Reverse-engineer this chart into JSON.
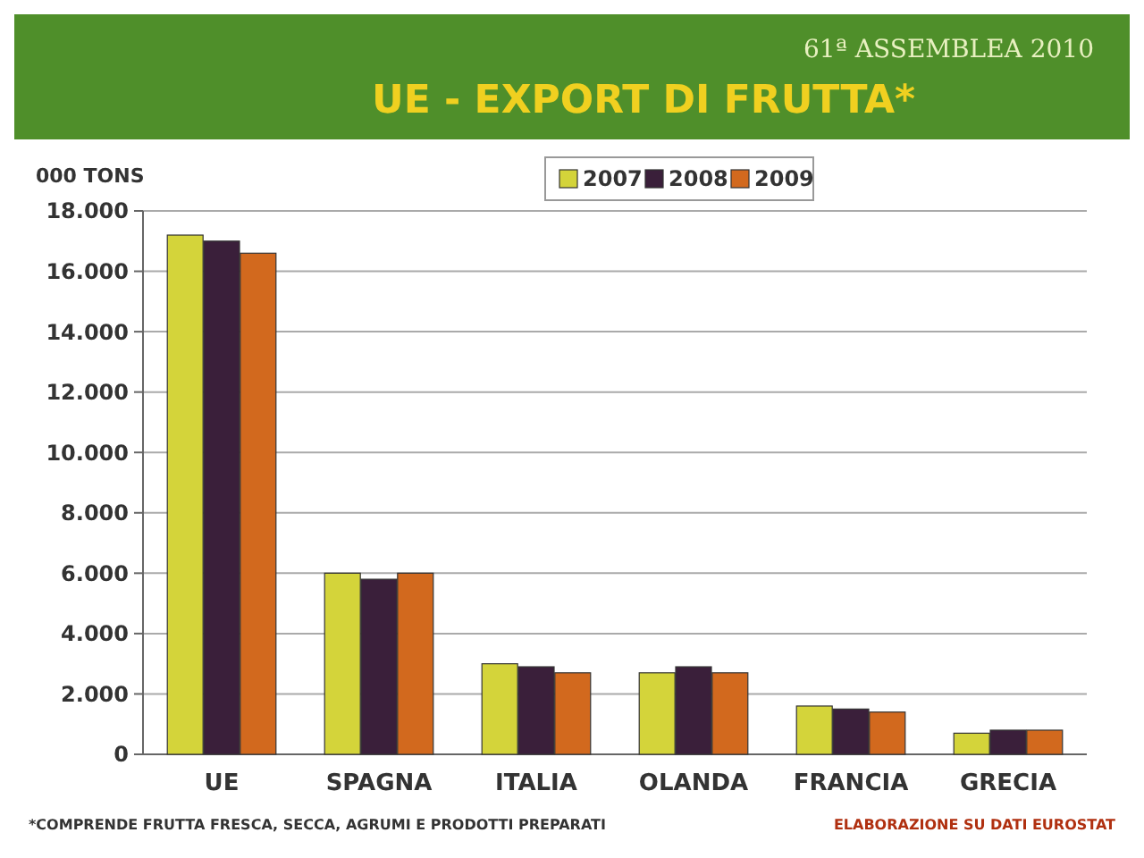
{
  "chart_data": {
    "type": "bar",
    "title": "UE - EXPORT DI FRUTTA*",
    "subtitle": "61ª ASSEMBLEA 2010",
    "ylabel": "000 TONS",
    "categories": [
      "UE",
      "SPAGNA",
      "ITALIA",
      "OLANDA",
      "FRANCIA",
      "GRECIA"
    ],
    "series": [
      {
        "name": "2007",
        "color": "#d4d43a",
        "values": [
          17200,
          6000,
          3000,
          2700,
          1600,
          700
        ]
      },
      {
        "name": "2008",
        "color": "#3a1f3a",
        "values": [
          17000,
          5800,
          2900,
          2900,
          1500,
          800
        ]
      },
      {
        "name": "2009",
        "color": "#d2691e",
        "values": [
          16600,
          6000,
          2700,
          2700,
          1400,
          800
        ]
      }
    ],
    "ylim": [
      0,
      18000
    ],
    "yticks": [
      {
        "value": 0,
        "label": "0"
      },
      {
        "value": 2000,
        "label": "2.000"
      },
      {
        "value": 4000,
        "label": "4.000"
      },
      {
        "value": 6000,
        "label": "6.000"
      },
      {
        "value": 8000,
        "label": "8.000"
      },
      {
        "value": 10000,
        "label": "10.000"
      },
      {
        "value": 12000,
        "label": "12.000"
      },
      {
        "value": 14000,
        "label": "14.000"
      },
      {
        "value": 16000,
        "label": "16.000"
      },
      {
        "value": 18000,
        "label": "18.000"
      }
    ],
    "grid": "y",
    "legend": "top",
    "annotations": [
      "*COMPRENDE FRUTTA FRESCA, SECCA, AGRUMI E PRODOTTI PREPARATI",
      "ELABORAZIONE SU DATI EUROSTAT"
    ]
  }
}
